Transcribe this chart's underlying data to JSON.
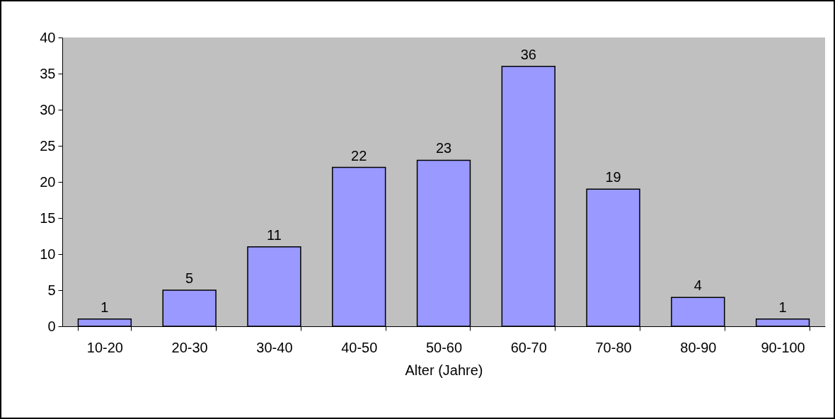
{
  "chart_data": {
    "type": "bar",
    "xlabel": "Alter (Jahre)",
    "categories": [
      "10-20",
      "20-30",
      "30-40",
      "40-50",
      "50-60",
      "60-70",
      "70-80",
      "80-90",
      "90-100"
    ],
    "values": [
      1,
      5,
      11,
      22,
      23,
      36,
      19,
      4,
      1
    ],
    "color": "#9999ff",
    "ylim": [
      0,
      40
    ],
    "yticks": [
      0,
      5,
      10,
      15,
      20,
      25,
      30,
      35,
      40
    ],
    "data_labels": true
  }
}
